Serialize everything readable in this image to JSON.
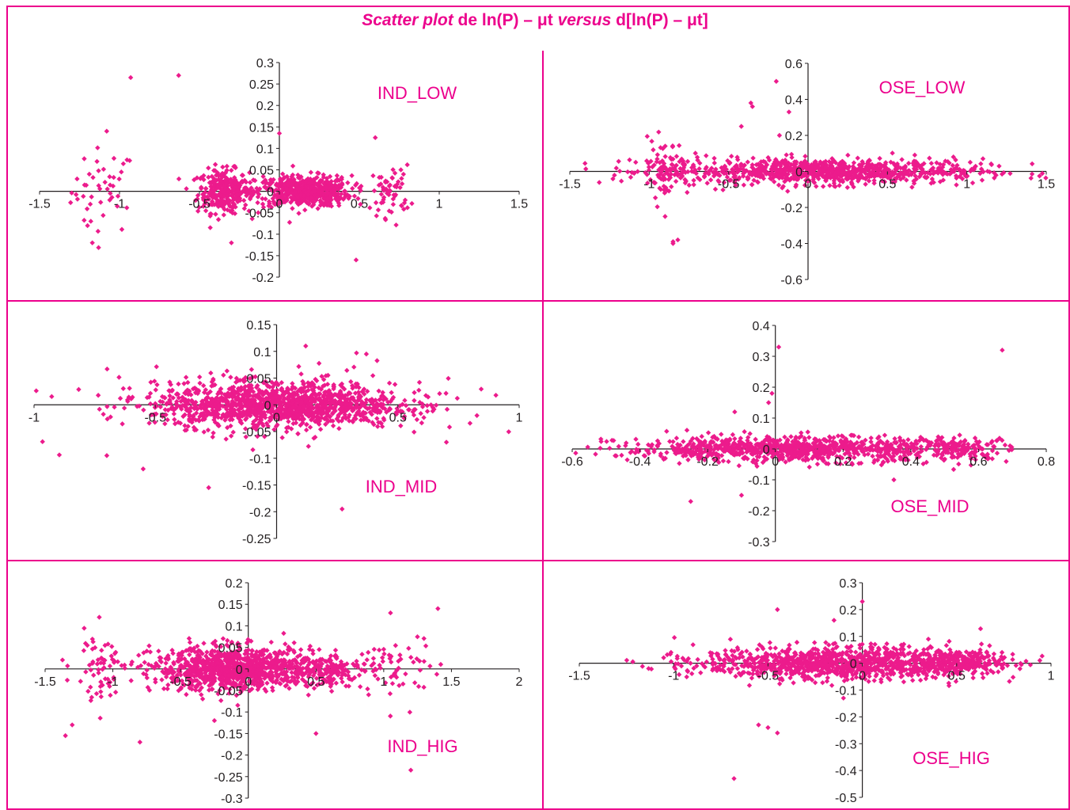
{
  "title": {
    "part1": "Scatter plot",
    "part2": " de ln(P) – μt ",
    "part3": "versus",
    "part4": " d[ln(P) – μt]"
  },
  "colors": {
    "accent": "#ec008c",
    "marker": "#ec1b8c",
    "axis": "#231f20"
  },
  "chart_data": [
    {
      "type": "scatter",
      "name": "IND_LOW",
      "label": "IND_LOW",
      "xlim": [
        -1.5,
        1.5
      ],
      "ylim": [
        -0.2,
        0.3
      ],
      "xticks": [
        "-1.5",
        "-1",
        "-0.5",
        "0",
        "0.5",
        "1",
        "1.5"
      ],
      "yticks": [
        "-0.2",
        "-0.15",
        "-0.1",
        "-0.05",
        "0",
        "0.05",
        "0.1",
        "0.15",
        "0.2",
        "0.25",
        "0.3"
      ],
      "grid": false,
      "clusters": [
        {
          "cx": -1.1,
          "cy": 0,
          "sx": 0.1,
          "sy": 0.05,
          "n": 45
        },
        {
          "cx": -0.35,
          "cy": 0,
          "sx": 0.08,
          "sy": 0.025,
          "n": 300
        },
        {
          "cx": 0.15,
          "cy": 0,
          "sx": 0.15,
          "sy": 0.018,
          "n": 550
        },
        {
          "cx": 0.7,
          "cy": 0,
          "sx": 0.06,
          "sy": 0.03,
          "n": 60
        }
      ],
      "outliers": [
        [
          -0.93,
          0.265
        ],
        [
          -0.63,
          0.27
        ],
        [
          -1.08,
          0.14
        ],
        [
          0.0,
          0.135
        ],
        [
          0.6,
          0.125
        ],
        [
          -0.3,
          -0.12
        ],
        [
          0.48,
          -0.16
        ],
        [
          -1.17,
          -0.12
        ],
        [
          -1.2,
          -0.08
        ]
      ]
    },
    {
      "type": "scatter",
      "name": "OSE_LOW",
      "label": "OSE_LOW",
      "xlim": [
        -1.5,
        1.5
      ],
      "ylim": [
        -0.6,
        0.6
      ],
      "xticks": [
        "-1.5",
        "-1",
        "-0.5",
        "0",
        "0.5",
        "1",
        "1.5"
      ],
      "yticks": [
        "-0.6",
        "-0.4",
        "-0.2",
        "0",
        "0.2",
        "0.4",
        "0.6"
      ],
      "grid": false,
      "clusters": [
        {
          "cx": 0.1,
          "cy": 0,
          "sx": 0.5,
          "sy": 0.035,
          "n": 900
        },
        {
          "cx": -0.9,
          "cy": 0.02,
          "sx": 0.08,
          "sy": 0.08,
          "n": 90
        }
      ],
      "outliers": [
        [
          -0.82,
          -0.38
        ],
        [
          -0.85,
          -0.4
        ],
        [
          -0.85,
          -0.39
        ],
        [
          -0.35,
          0.36
        ],
        [
          -0.36,
          0.38
        ],
        [
          -0.2,
          0.5
        ],
        [
          -0.12,
          0.33
        ],
        [
          -0.18,
          0.2
        ],
        [
          -0.42,
          0.25
        ],
        [
          -0.9,
          -0.25
        ]
      ]
    },
    {
      "type": "scatter",
      "name": "IND_MID",
      "label": "IND_MID",
      "xlim": [
        -1,
        1
      ],
      "ylim": [
        -0.25,
        0.15
      ],
      "xticks": [
        "-1",
        "-0.5",
        "0",
        "0.5",
        "1"
      ],
      "yticks": [
        "-0.25",
        "-0.2",
        "-0.15",
        "-0.1",
        "-0.05",
        "0",
        "0.05",
        "0.1",
        "0.15"
      ],
      "grid": false,
      "clusters": [
        {
          "cx": 0.0,
          "cy": 0,
          "sx": 0.25,
          "sy": 0.02,
          "n": 1200
        },
        {
          "cx": 0.0,
          "cy": 0,
          "sx": 0.4,
          "sy": 0.035,
          "n": 180
        }
      ],
      "outliers": [
        [
          0.27,
          -0.195
        ],
        [
          -0.28,
          -0.155
        ],
        [
          -0.55,
          -0.12
        ],
        [
          0.12,
          0.11
        ],
        [
          0.37,
          0.095
        ],
        [
          -0.7,
          -0.095
        ],
        [
          0.7,
          -0.07
        ]
      ]
    },
    {
      "type": "scatter",
      "name": "OSE_MID",
      "label": "OSE_MID",
      "xlim": [
        -0.6,
        0.8
      ],
      "ylim": [
        -0.3,
        0.4
      ],
      "xticks": [
        "-0.6",
        "-0.4",
        "-0.2",
        "0",
        "0.2",
        "0.4",
        "0.6",
        "0.8"
      ],
      "yticks": [
        "-0.3",
        "-0.2",
        "-0.1",
        "0",
        "0.1",
        "0.2",
        "0.3",
        "0.4"
      ],
      "grid": false,
      "clusters": [
        {
          "cx": 0.05,
          "cy": 0,
          "sx": 0.25,
          "sy": 0.02,
          "n": 900
        },
        {
          "cx": 0.55,
          "cy": 0,
          "sx": 0.07,
          "sy": 0.02,
          "n": 120
        }
      ],
      "outliers": [
        [
          0.67,
          0.32
        ],
        [
          0.01,
          0.33
        ],
        [
          -0.01,
          0.18
        ],
        [
          -0.02,
          0.15
        ],
        [
          -0.1,
          -0.15
        ],
        [
          -0.25,
          -0.17
        ],
        [
          0.35,
          -0.1
        ],
        [
          -0.12,
          0.12
        ]
      ]
    },
    {
      "type": "scatter",
      "name": "IND_HIG",
      "label": "IND_HIG",
      "xlim": [
        -1.5,
        2
      ],
      "ylim": [
        -0.3,
        0.2
      ],
      "xticks": [
        "-1.5",
        "-1",
        "-0.5",
        "0",
        "0.5",
        "1",
        "1.5",
        "2"
      ],
      "yticks": [
        "-0.3",
        "-0.25",
        "-0.2",
        "-0.15",
        "-0.1",
        "-0.05",
        "0",
        "0.05",
        "0.1",
        "0.15",
        "0.2"
      ],
      "grid": false,
      "clusters": [
        {
          "cx": -0.1,
          "cy": 0,
          "sx": 0.3,
          "sy": 0.025,
          "n": 1000
        },
        {
          "cx": -1.1,
          "cy": 0,
          "sx": 0.1,
          "sy": 0.04,
          "n": 60
        },
        {
          "cx": 0.55,
          "cy": 0,
          "sx": 0.15,
          "sy": 0.02,
          "n": 150
        },
        {
          "cx": 1.1,
          "cy": 0,
          "sx": 0.15,
          "sy": 0.04,
          "n": 60
        }
      ],
      "outliers": [
        [
          1.2,
          -0.235
        ],
        [
          -1.35,
          -0.155
        ],
        [
          -1.3,
          -0.13
        ],
        [
          -0.8,
          -0.17
        ],
        [
          1.4,
          0.14
        ],
        [
          1.05,
          0.13
        ],
        [
          -1.1,
          0.12
        ],
        [
          -0.25,
          -0.12
        ],
        [
          0.5,
          -0.15
        ]
      ]
    },
    {
      "type": "scatter",
      "name": "OSE_HIG",
      "label": "OSE_HIG",
      "xlim": [
        -1.5,
        1
      ],
      "ylim": [
        -0.5,
        0.3
      ],
      "xticks": [
        "-1.5",
        "-1",
        "-0.5",
        "0",
        "0.5",
        "1"
      ],
      "yticks": [
        "-0.5",
        "-0.4",
        "-0.3",
        "-0.2",
        "-0.1",
        "0",
        "0.1",
        "0.2",
        "0.3"
      ],
      "grid": false,
      "clusters": [
        {
          "cx": -0.1,
          "cy": 0,
          "sx": 0.38,
          "sy": 0.03,
          "n": 1100
        },
        {
          "cx": 0.5,
          "cy": 0,
          "sx": 0.12,
          "sy": 0.02,
          "n": 200
        }
      ],
      "outliers": [
        [
          -0.68,
          -0.43
        ],
        [
          -0.55,
          -0.23
        ],
        [
          -0.5,
          -0.24
        ],
        [
          -0.45,
          -0.26
        ],
        [
          -0.45,
          0.2
        ],
        [
          -0.15,
          0.16
        ],
        [
          0.0,
          0.23
        ],
        [
          -0.1,
          -0.13
        ],
        [
          0.35,
          0.09
        ]
      ]
    }
  ]
}
